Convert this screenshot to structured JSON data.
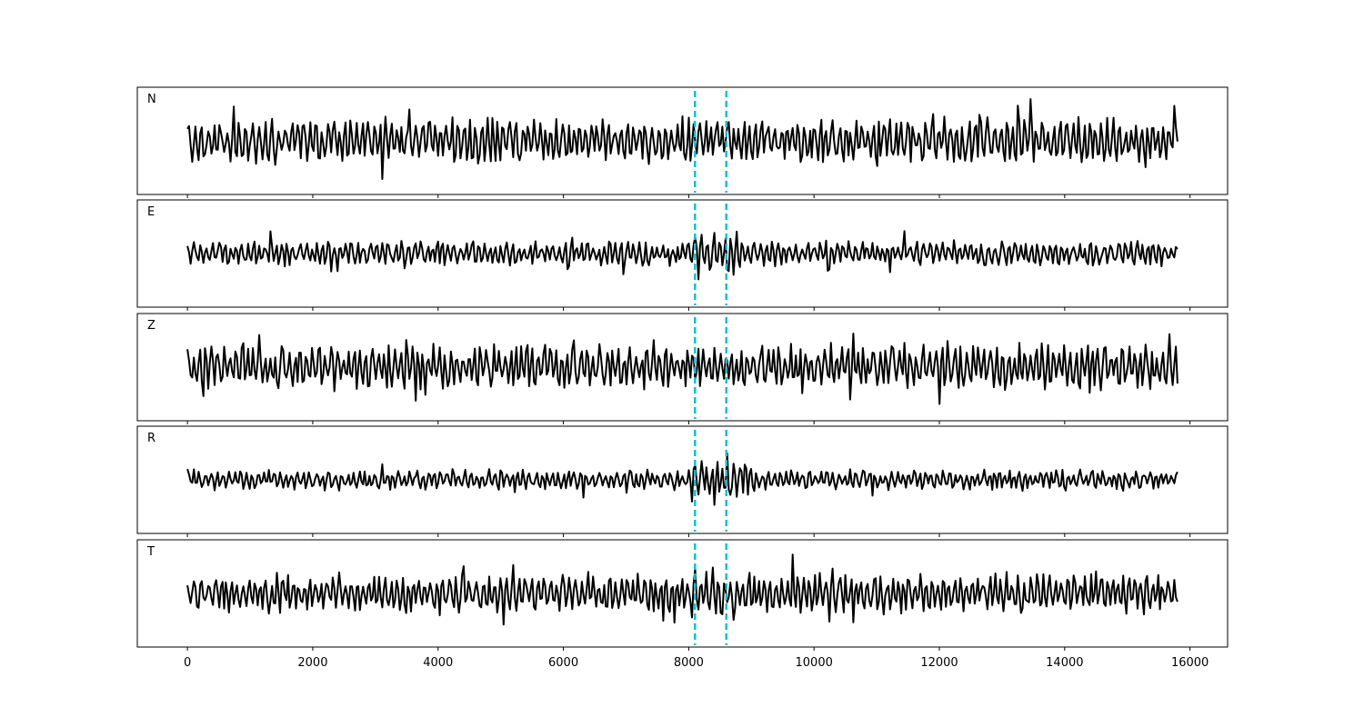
{
  "chart_data": {
    "type": "line",
    "panels": [
      {
        "label": "N",
        "amplitude": 1.0,
        "seed": 11
      },
      {
        "label": "E",
        "amplitude": 0.55,
        "seed": 23,
        "event_boost": 2.6
      },
      {
        "label": "Z",
        "amplitude": 1.0,
        "seed": 37
      },
      {
        "label": "R",
        "amplitude": 0.45,
        "seed": 41,
        "event_boost": 3.2
      },
      {
        "label": "T",
        "amplitude": 0.9,
        "seed": 53,
        "event_boost": 1.4
      }
    ],
    "x_range": [
      -800,
      16600
    ],
    "x_ticks": [
      0,
      2000,
      4000,
      6000,
      8000,
      10000,
      12000,
      14000,
      16000
    ],
    "x_tick_labels": [
      "0",
      "2000",
      "4000",
      "6000",
      "8000",
      "10000",
      "12000",
      "14000",
      "16000"
    ],
    "signal_x_range": [
      0,
      15800
    ],
    "event_window": [
      8100,
      8600
    ],
    "vertical_markers": [
      8100,
      8600
    ],
    "marker_color": "#17becf",
    "trace_color": "#000000",
    "grid": false
  }
}
